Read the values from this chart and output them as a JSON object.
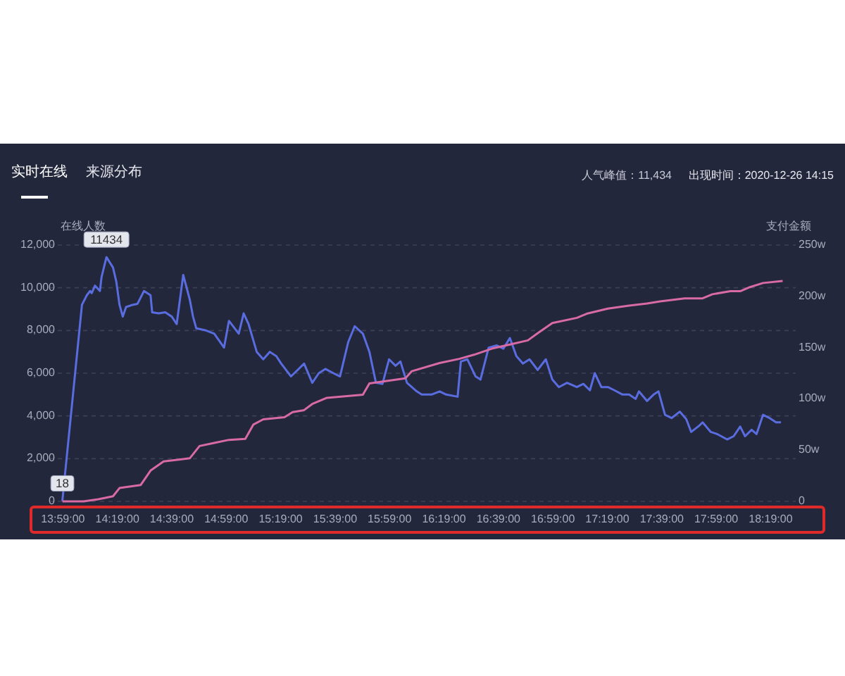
{
  "chart_data": {
    "type": "line",
    "title": "实时在线",
    "annotations": [
      "来源分布",
      "人气峰值：11,434",
      "出现时间：2020-12-26 14:15",
      {
        "text": "11434",
        "x": 14.25,
        "y": 11434
      },
      {
        "text": "18",
        "x": 13.98,
        "y": 18
      }
    ],
    "ylabel": "在线人数",
    "y2label": "支付金额",
    "xlim": [
      13.9,
      18.47
    ],
    "xticks": [
      {
        "value": 13.983333333,
        "label": "13:59:00"
      },
      {
        "value": 14.316666667,
        "label": "14:19:00"
      },
      {
        "value": 14.65,
        "label": "14:39:00"
      },
      {
        "value": 14.983333333,
        "label": "14:59:00"
      },
      {
        "value": 15.316666667,
        "label": "15:19:00"
      },
      {
        "value": 15.65,
        "label": "15:39:00"
      },
      {
        "value": 15.983333333,
        "label": "15:59:00"
      },
      {
        "value": 16.316666667,
        "label": "16:19:00"
      },
      {
        "value": 16.65,
        "label": "16:39:00"
      },
      {
        "value": 16.983333333,
        "label": "16:59:00"
      },
      {
        "value": 17.316666667,
        "label": "17:19:00"
      },
      {
        "value": 17.65,
        "label": "17:39:00"
      },
      {
        "value": 17.983333333,
        "label": "17:59:00"
      },
      {
        "value": 18.316666667,
        "label": "18:19:00"
      }
    ],
    "ylim": [
      0,
      12000
    ],
    "yticks": [
      0,
      {
        "value": 2000,
        "label": "2,000"
      },
      {
        "value": 4000,
        "label": "4,000"
      },
      {
        "value": 6000,
        "label": "6,000"
      },
      {
        "value": 8000,
        "label": "8,000"
      },
      {
        "value": 10000,
        "label": "10,000"
      },
      {
        "value": 12000,
        "label": "12,000"
      }
    ],
    "y2lim": [
      0,
      250
    ],
    "y2ticks": [
      0,
      {
        "value": 50,
        "label": "50w"
      },
      {
        "value": 100,
        "label": "100w"
      },
      {
        "value": 150,
        "label": "150w"
      },
      {
        "value": 200,
        "label": "200w"
      },
      {
        "value": 250,
        "label": "250w"
      }
    ],
    "grid": "y",
    "series": [
      {
        "color": "#5a6de0",
        "x": [
          13.98,
          14.1,
          14.13,
          14.15,
          14.16,
          14.18,
          14.21,
          14.22,
          14.25,
          14.29,
          14.31,
          14.33,
          14.35,
          14.37,
          14.41,
          14.44,
          14.48,
          14.52,
          14.53,
          14.57,
          14.61,
          14.65,
          14.68,
          14.7,
          14.72,
          14.76,
          14.78,
          14.8,
          14.86,
          14.91,
          14.97,
          15.0,
          15.06,
          15.09,
          15.12,
          15.17,
          15.21,
          15.25,
          15.29,
          15.32,
          15.38,
          15.42,
          15.46,
          15.51,
          15.55,
          15.59,
          15.64,
          15.68,
          15.73,
          15.77,
          15.82,
          15.86,
          15.9,
          15.94,
          15.98,
          16.02,
          16.05,
          16.09,
          16.15,
          16.18,
          16.24,
          16.29,
          16.33,
          16.4,
          16.42,
          16.46,
          16.51,
          16.54,
          16.59,
          16.64,
          16.68,
          16.72,
          16.76,
          16.8,
          16.84,
          16.89,
          16.94,
          16.98,
          17.02,
          17.07,
          17.13,
          17.17,
          17.21,
          17.24,
          17.28,
          17.32,
          17.36,
          17.41,
          17.45,
          17.49,
          17.51,
          17.56,
          17.6,
          17.63,
          17.67,
          17.71,
          17.76,
          17.8,
          17.83,
          17.88,
          17.9,
          17.95,
          17.99,
          18.05,
          18.09,
          18.13,
          18.16,
          18.2,
          18.23,
          18.27,
          18.31,
          18.35,
          18.38
        ],
        "values": [
          18,
          9200,
          9650,
          9850,
          9750,
          10100,
          9850,
          10500,
          11434,
          10950,
          10300,
          9200,
          8650,
          9100,
          9200,
          9250,
          9850,
          9650,
          8850,
          8800,
          8850,
          8650,
          8300,
          9450,
          10600,
          9450,
          8650,
          8100,
          8000,
          7850,
          7200,
          8450,
          7850,
          8800,
          8300,
          7000,
          6650,
          7000,
          6800,
          6450,
          5850,
          6150,
          6450,
          5550,
          6000,
          6200,
          6000,
          5850,
          7450,
          8200,
          7850,
          7000,
          5550,
          5500,
          6650,
          6350,
          6550,
          5550,
          5150,
          5000,
          5000,
          5150,
          5000,
          4900,
          6550,
          6650,
          5850,
          5700,
          7200,
          7300,
          7150,
          7650,
          6800,
          6450,
          6650,
          6150,
          6650,
          5700,
          5350,
          5550,
          5350,
          5500,
          5200,
          6000,
          5350,
          5350,
          5200,
          5000,
          5000,
          4800,
          5150,
          4700,
          5000,
          5150,
          4050,
          3900,
          4200,
          3850,
          3250,
          3550,
          3700,
          3250,
          3150,
          2900,
          3050,
          3500,
          3050,
          3350,
          3150,
          4050,
          3900,
          3700,
          3700
        ]
      },
      {
        "color": "#d86aa6",
        "axis": "y2",
        "x": [
          13.98,
          14.11,
          14.2,
          14.29,
          14.33,
          14.46,
          14.52,
          14.6,
          14.76,
          14.82,
          14.91,
          15.0,
          15.1,
          15.15,
          15.21,
          15.34,
          15.39,
          15.46,
          15.51,
          15.6,
          15.82,
          15.86,
          16.08,
          16.12,
          16.29,
          16.41,
          16.5,
          16.61,
          16.72,
          16.83,
          16.89,
          16.98,
          17.13,
          17.19,
          17.32,
          17.45,
          17.56,
          17.64,
          17.79,
          17.9,
          17.96,
          18.07,
          18.13,
          18.19,
          18.27,
          18.39
        ],
        "values": [
          0,
          0,
          2,
          5,
          13,
          16,
          30,
          39,
          42,
          54,
          57,
          60,
          61,
          75,
          80,
          82,
          87,
          89,
          95,
          101,
          104,
          115,
          120,
          127,
          135,
          139,
          143,
          149,
          153,
          157,
          164,
          174,
          179,
          183,
          188,
          191,
          193,
          195,
          198,
          198,
          202,
          205,
          205,
          209,
          213,
          215
        ]
      }
    ]
  }
}
